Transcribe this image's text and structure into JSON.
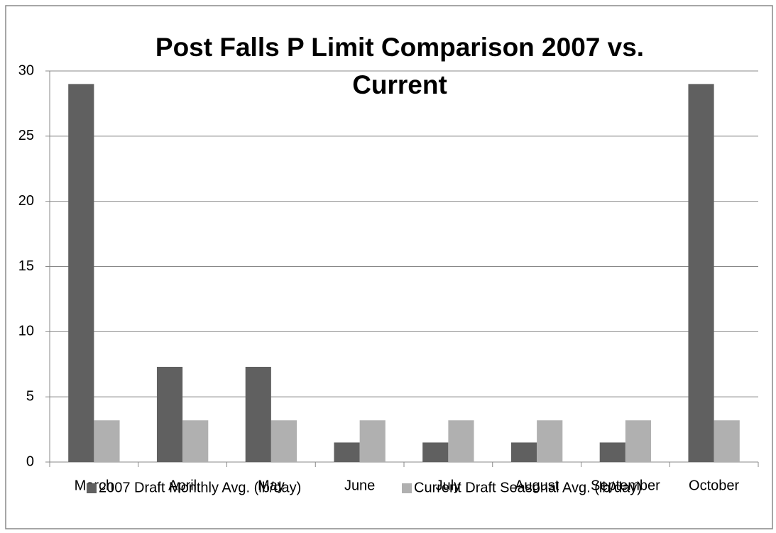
{
  "chart_data": {
    "type": "bar",
    "title": "Post Falls P Limit Comparison 2007 vs. Current",
    "categories": [
      "March",
      "April",
      "May",
      "June",
      "July",
      "August",
      "September",
      "October"
    ],
    "series": [
      {
        "name": "2007 Draft Monthly Avg. (lb/day)",
        "color": "#606060",
        "values": [
          29,
          7.3,
          7.3,
          1.5,
          1.5,
          1.5,
          1.5,
          29
        ]
      },
      {
        "name": "Current Draft Seasonal Avg. (lb/day)",
        "color": "#b0b0b0",
        "values": [
          3.2,
          3.2,
          3.2,
          3.2,
          3.2,
          3.2,
          3.2,
          3.2
        ]
      }
    ],
    "ylim": [
      0,
      30
    ],
    "yticks": [
      0,
      5,
      10,
      15,
      20,
      25,
      30
    ],
    "grid": true,
    "legend": "bottom"
  }
}
